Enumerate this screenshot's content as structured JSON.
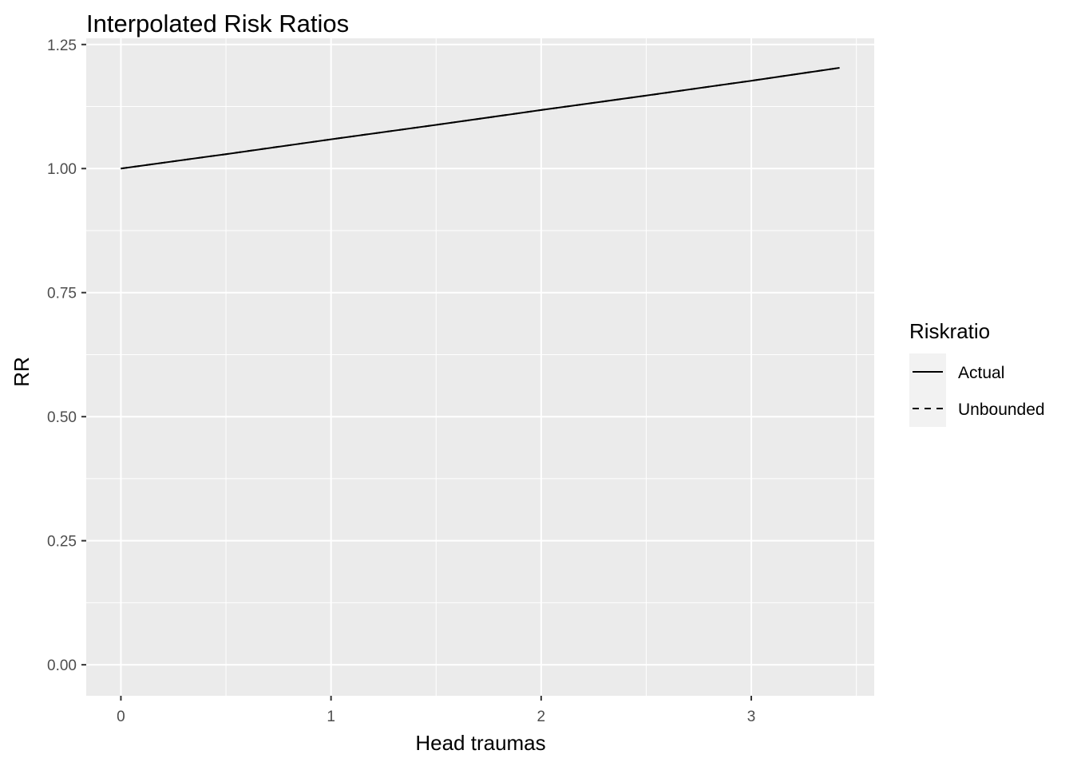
{
  "chart_data": {
    "type": "line",
    "title": "Interpolated Risk Ratios",
    "xlabel": "Head traumas",
    "ylabel": "RR",
    "xlim": [
      -0.165,
      3.585
    ],
    "ylim": [
      -0.0625,
      1.2625
    ],
    "x_ticks": [
      0,
      1,
      2,
      3
    ],
    "x_tick_labels": [
      "0",
      "1",
      "2",
      "3"
    ],
    "y_ticks": [
      0,
      0.25,
      0.5,
      0.75,
      1.0,
      1.25
    ],
    "y_tick_labels": [
      "0.00",
      "0.25",
      "0.50",
      "0.75",
      "1.00",
      "1.25"
    ],
    "grid": true,
    "panel_background": "#ebebeb",
    "grid_color": "#ffffff",
    "legend": {
      "title": "Riskratio",
      "placement": "right",
      "entries": [
        {
          "label": "Actual",
          "linetype": "solid"
        },
        {
          "label": "Unbounded",
          "linetype": "dashed"
        }
      ]
    },
    "series": [
      {
        "name": "Actual",
        "linetype": "solid",
        "color": "#000000",
        "x": [
          0,
          0.5,
          1,
          1.5,
          2,
          2.5,
          3,
          3.42
        ],
        "y": [
          1.0,
          1.029,
          1.059,
          1.088,
          1.118,
          1.147,
          1.177,
          1.203
        ]
      },
      {
        "name": "Unbounded",
        "linetype": "dashed",
        "color": "#000000",
        "x": [
          0,
          0.5,
          1,
          1.5,
          2,
          2.5,
          3,
          3.42
        ],
        "y": [
          1.0,
          1.029,
          1.059,
          1.088,
          1.118,
          1.147,
          1.177,
          1.203
        ]
      }
    ]
  }
}
